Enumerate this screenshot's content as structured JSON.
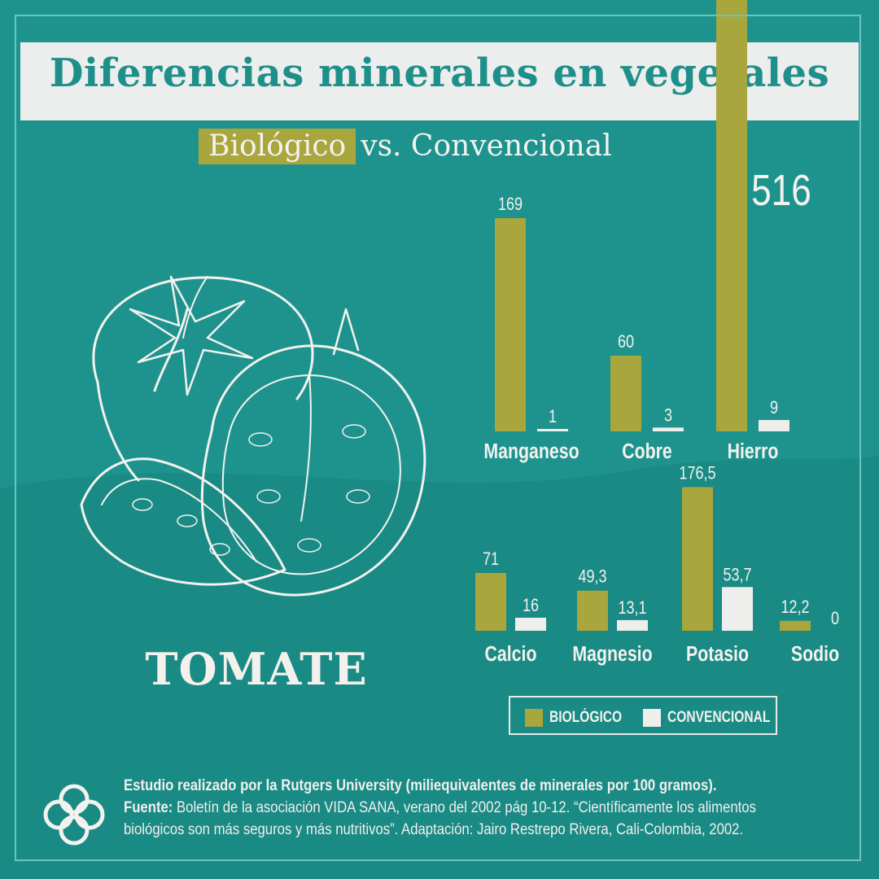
{
  "title": "Diferencias minerales en vegetales",
  "subtitle": {
    "highlight": "Biológico",
    "rest": "vs. Convencional"
  },
  "product_label": "TOMATE",
  "legend": {
    "organic": "BIOLÓGICO",
    "conventional": "CONVENCIONAL"
  },
  "colors": {
    "background": "#1e938e",
    "organic": "#a8a63d",
    "conventional": "#eeeeec",
    "title_bar": "#ebeeed",
    "title_text": "#1f8f8a"
  },
  "footer": {
    "line1": "Estudio realizado por la Rutgers University (miliequivalentes de minerales por 100 gramos).",
    "source_label": "Fuente:",
    "source_text": " Boletín de la asociación VIDA SANA, verano del 2002 pág 10-12. “Científicamente los alimentos",
    "line3": "biológicos son más seguros y más nutritivos”. Adaptación: Jairo Restrepo Rivera, Cali-Colombia, 2002."
  },
  "icons": {
    "illustration": "tomato-illustration-icon",
    "logo": "knot-logo-icon"
  },
  "chart_data": [
    {
      "type": "bar",
      "categories": [
        "Manganeso",
        "Cobre",
        "Hierro"
      ],
      "series": [
        {
          "name": "BIOLÓGICO",
          "values": [
            169,
            60,
            516
          ]
        },
        {
          "name": "CONVENCIONAL",
          "values": [
            1,
            3,
            9
          ]
        }
      ],
      "value_labels": {
        "BIOLÓGICO": [
          "169",
          "60",
          "516"
        ],
        "CONVENCIONAL": [
          "1",
          "3",
          "9"
        ]
      }
    },
    {
      "type": "bar",
      "categories": [
        "Calcio",
        "Magnesio",
        "Potasio",
        "Sodio"
      ],
      "series": [
        {
          "name": "BIOLÓGICO",
          "values": [
            71,
            49.3,
            176.5,
            12.2
          ]
        },
        {
          "name": "CONVENCIONAL",
          "values": [
            16,
            13.1,
            53.7,
            0
          ]
        }
      ],
      "value_labels": {
        "BIOLÓGICO": [
          "71",
          "49,3",
          "176,5",
          "12,2"
        ],
        "CONVENCIONAL": [
          "16",
          "13,1",
          "53,7",
          "0"
        ]
      }
    }
  ]
}
